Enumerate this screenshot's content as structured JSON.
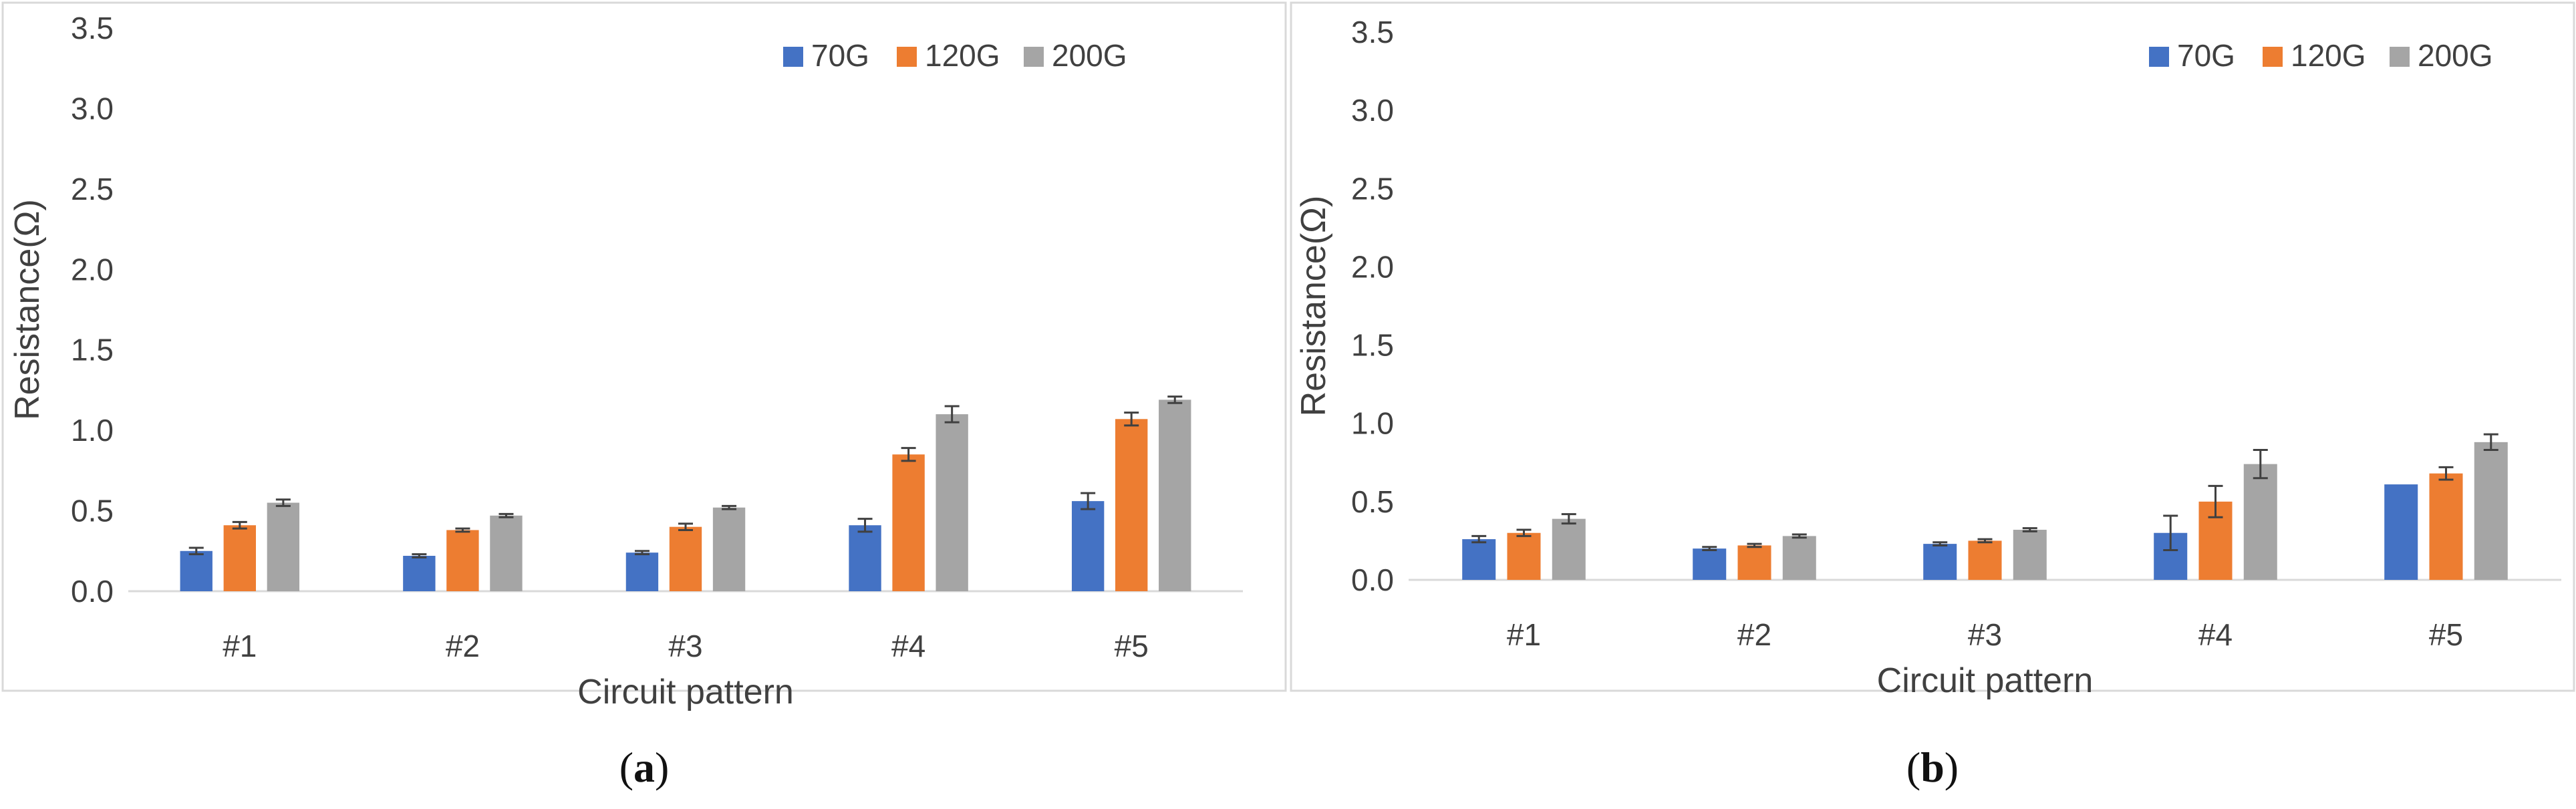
{
  "colors": {
    "70G": "#4472C4",
    "120G": "#ED7D31",
    "200G": "#A5A5A5",
    "error_bar": "#404040",
    "axis": "#D9D9D9",
    "frame": "#D9D9D9"
  },
  "chart_data": [
    {
      "type": "bar",
      "caption": "(a)",
      "caption_open": "(",
      "caption_letter": "a",
      "caption_close": ")",
      "xlabel": "Circuit pattern",
      "ylabel": "Resistance(Ω)",
      "ylim": [
        0,
        3.5
      ],
      "yticks": [
        "0.0",
        "0.5",
        "1.0",
        "1.5",
        "2.0",
        "2.5",
        "3.0",
        "3.5"
      ],
      "categories": [
        "#1",
        "#2",
        "#3",
        "#4",
        "#5"
      ],
      "legend_position": "top-right",
      "series": [
        {
          "name": "70G",
          "values": [
            0.25,
            0.22,
            0.24,
            0.41,
            0.56
          ],
          "errors": [
            0.02,
            0.01,
            0.01,
            0.04,
            0.05
          ]
        },
        {
          "name": "120G",
          "values": [
            0.41,
            0.38,
            0.4,
            0.85,
            1.07
          ],
          "errors": [
            0.02,
            0.01,
            0.02,
            0.04,
            0.04
          ]
        },
        {
          "name": "200G",
          "values": [
            0.55,
            0.47,
            0.52,
            1.1,
            1.19
          ],
          "errors": [
            0.02,
            0.01,
            0.01,
            0.05,
            0.02
          ]
        }
      ]
    },
    {
      "type": "bar",
      "caption": "(b)",
      "caption_open": "(",
      "caption_letter": "b",
      "caption_close": ")",
      "xlabel": "Circuit pattern",
      "ylabel": "Resistance(Ω)",
      "ylim": [
        0,
        3.5
      ],
      "yticks": [
        "0.0",
        "0.5",
        "1.0",
        "1.5",
        "2.0",
        "2.5",
        "3.0",
        "3.5"
      ],
      "categories": [
        "#1",
        "#2",
        "#3",
        "#4",
        "#5"
      ],
      "legend_position": "top-right",
      "series": [
        {
          "name": "70G",
          "values": [
            0.26,
            0.2,
            0.23,
            0.3,
            0.61
          ],
          "errors": [
            0.02,
            0.01,
            0.01,
            0.11,
            0.0
          ]
        },
        {
          "name": "120G",
          "values": [
            0.3,
            0.22,
            0.25,
            0.5,
            0.68
          ],
          "errors": [
            0.02,
            0.01,
            0.01,
            0.1,
            0.04
          ]
        },
        {
          "name": "200G",
          "values": [
            0.39,
            0.28,
            0.32,
            0.74,
            0.88
          ],
          "errors": [
            0.03,
            0.01,
            0.01,
            0.09,
            0.05
          ]
        }
      ]
    }
  ]
}
